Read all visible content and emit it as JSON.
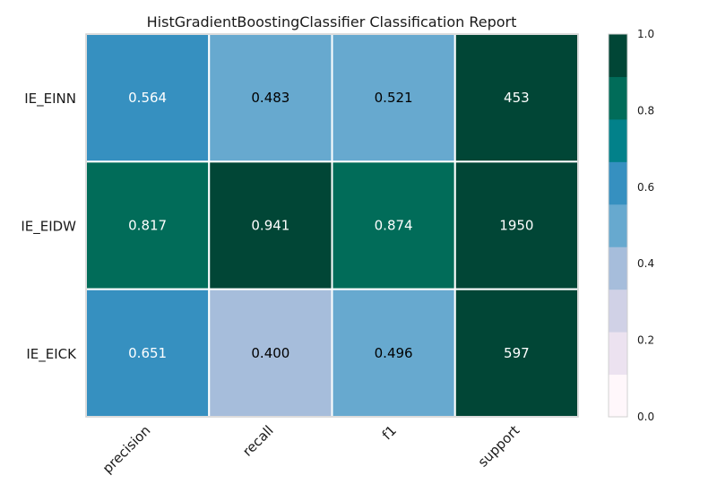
{
  "chart_data": {
    "type": "heatmap",
    "title": "HistGradientBoostingClassifier Classification Report",
    "xlabel": "",
    "ylabel": "",
    "columns": [
      "precision",
      "recall",
      "f1",
      "support"
    ],
    "rows": [
      "IE_EINN",
      "IE_EIDW",
      "IE_EICK"
    ],
    "values": [
      [
        0.564,
        0.483,
        0.521,
        453
      ],
      [
        0.817,
        0.941,
        0.874,
        1950
      ],
      [
        0.651,
        0.4,
        0.496,
        597
      ]
    ],
    "cell_labels": [
      [
        "0.564",
        "0.483",
        "0.521",
        "453"
      ],
      [
        "0.817",
        "0.941",
        "0.874",
        "1950"
      ],
      [
        "0.651",
        "0.400",
        "0.496",
        "597"
      ]
    ],
    "colorbar": {
      "vmin": 0.0,
      "vmax": 1.0,
      "ticks": [
        "0.0",
        "0.2",
        "0.4",
        "0.6",
        "0.8",
        "1.0"
      ],
      "colors": [
        "#fff7fb",
        "#ece2f0",
        "#d0d1e6",
        "#a6bddb",
        "#67a9cf",
        "#3690c0",
        "#02818a",
        "#016c59",
        "#014636"
      ]
    }
  }
}
